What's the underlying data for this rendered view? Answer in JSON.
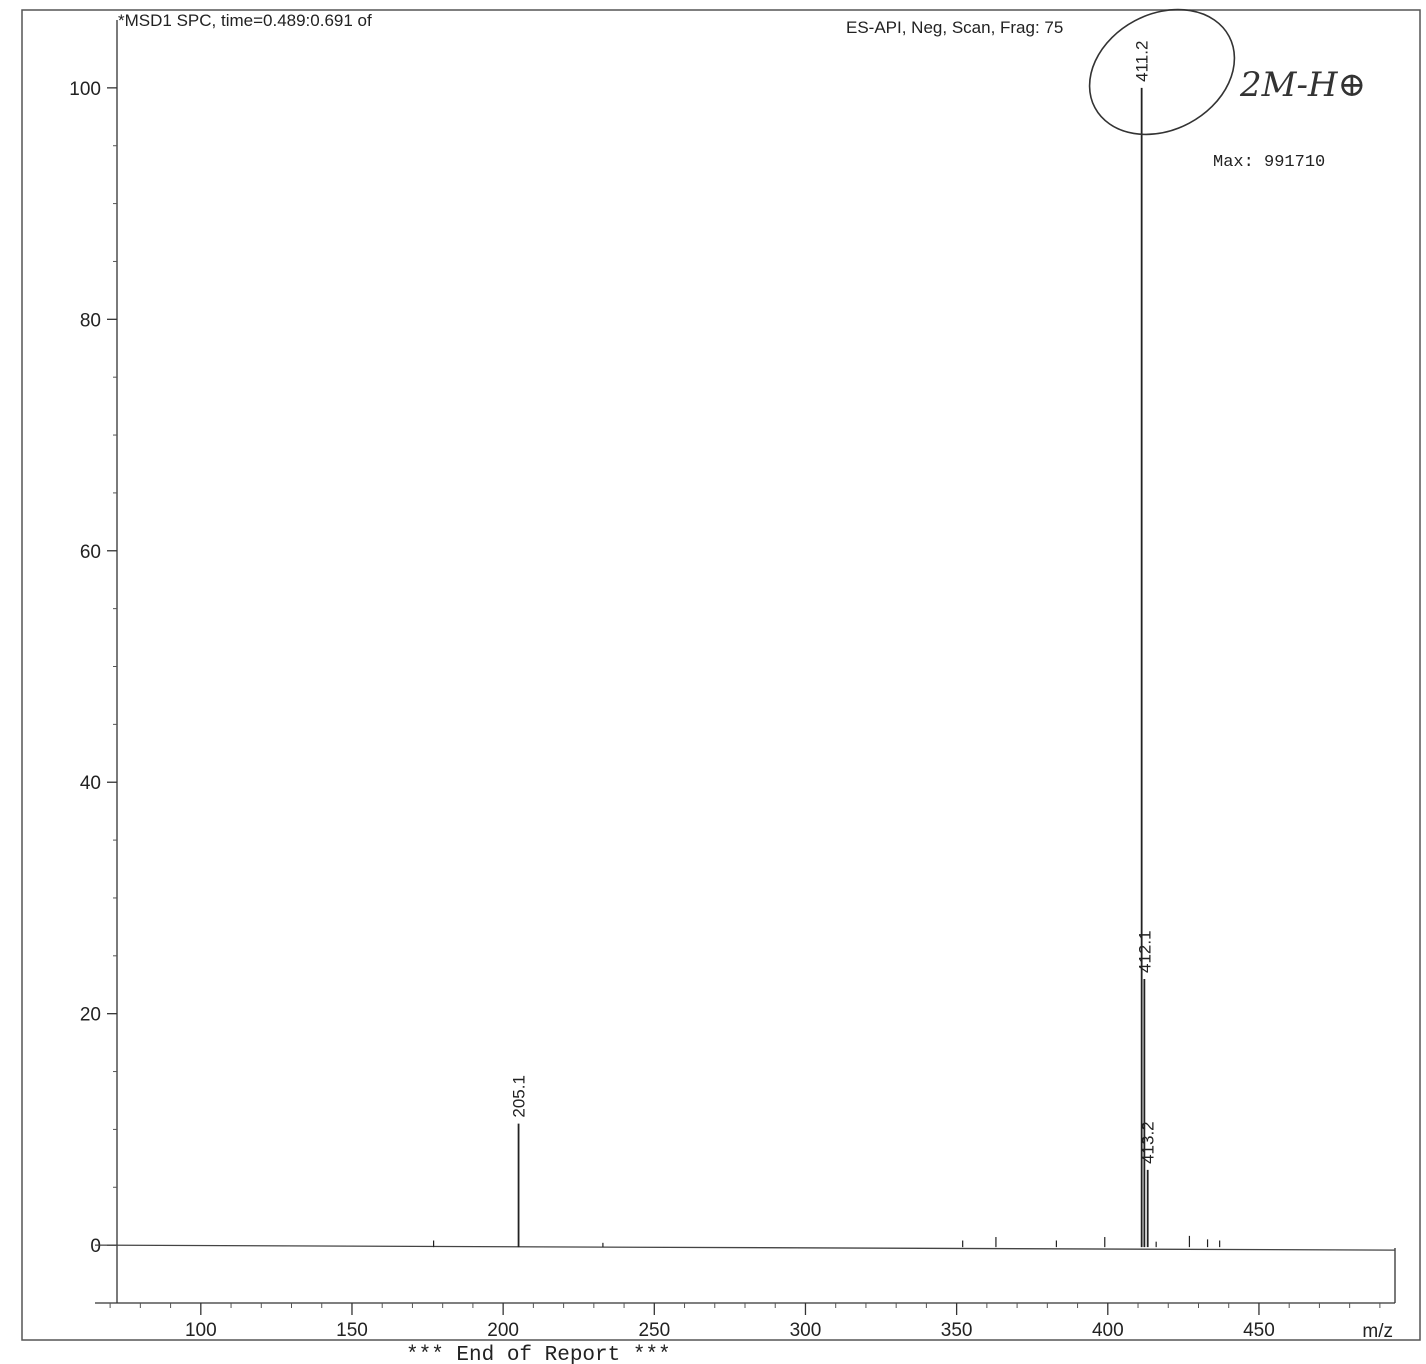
{
  "header": {
    "title": "*MSD1 SPC, time=0.489:0.691 of",
    "method": "ES-API, Neg, Scan, Frag: 75",
    "max_label": "Max: 991710"
  },
  "annotation": {
    "handwritten_note": "2M-H⊕"
  },
  "footer": {
    "end_of_report": "*** End of Report ***"
  },
  "chart_data": {
    "type": "bar",
    "title": "",
    "xlabel": "m/z",
    "ylabel": "",
    "xlim": [
      65,
      495
    ],
    "ylim": [
      -5,
      105
    ],
    "x_ticks": [
      100,
      150,
      200,
      250,
      300,
      350,
      400,
      450
    ],
    "y_ticks": [
      0,
      20,
      40,
      60,
      80,
      100
    ],
    "grid": false,
    "legend": "none",
    "peaks": [
      {
        "mz": 177.0,
        "intensity": 0.4
      },
      {
        "mz": 205.1,
        "intensity": 10.5,
        "label": "205.1"
      },
      {
        "mz": 233.0,
        "intensity": 0.2
      },
      {
        "mz": 352.0,
        "intensity": 0.4
      },
      {
        "mz": 363.0,
        "intensity": 0.7
      },
      {
        "mz": 383.0,
        "intensity": 0.4
      },
      {
        "mz": 399.0,
        "intensity": 0.7
      },
      {
        "mz": 411.2,
        "intensity": 100,
        "label": "411.2"
      },
      {
        "mz": 412.1,
        "intensity": 23,
        "label": "412.1"
      },
      {
        "mz": 413.2,
        "intensity": 6.5,
        "label": "413.2"
      },
      {
        "mz": 416.0,
        "intensity": 0.3
      },
      {
        "mz": 427.0,
        "intensity": 0.8
      },
      {
        "mz": 433.0,
        "intensity": 0.5
      },
      {
        "mz": 437.0,
        "intensity": 0.4
      }
    ],
    "circled_peak": "411.2"
  }
}
